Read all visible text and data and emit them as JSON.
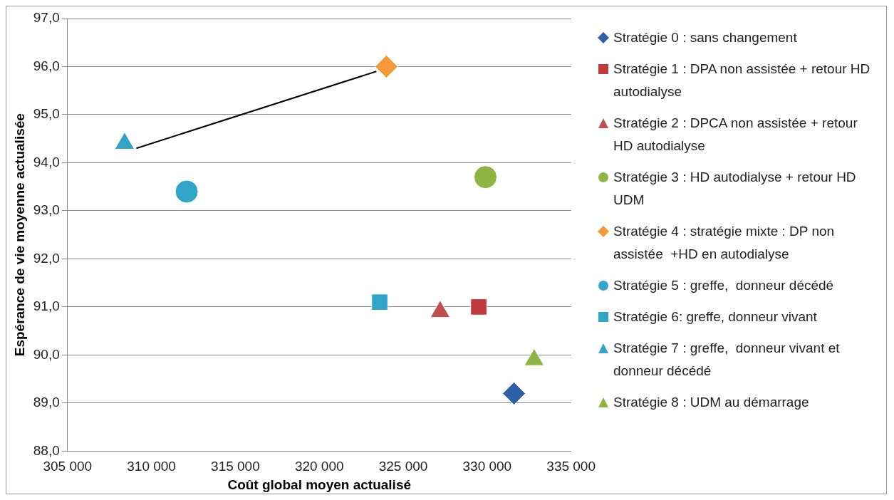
{
  "chart_data": {
    "type": "scatter",
    "xlabel": "Coût global moyen actualisé",
    "ylabel": "Espérance de vie moyenne actualisée",
    "xlim": [
      305000,
      335000
    ],
    "xticks": [
      {
        "value": 305000,
        "label": "305 000"
      },
      {
        "value": 310000,
        "label": "310 000"
      },
      {
        "value": 315000,
        "label": "315 000"
      },
      {
        "value": 320000,
        "label": "320 000"
      },
      {
        "value": 325000,
        "label": "325 000"
      },
      {
        "value": 330000,
        "label": "330 000"
      },
      {
        "value": 335000,
        "label": "335 000"
      }
    ],
    "ylim": [
      88,
      97
    ],
    "yticks": [
      {
        "value": 88,
        "label": "88,0"
      },
      {
        "value": 89,
        "label": "89,0"
      },
      {
        "value": 90,
        "label": "90,0"
      },
      {
        "value": 91,
        "label": "91,0"
      },
      {
        "value": 92,
        "label": "92,0"
      },
      {
        "value": 93,
        "label": "93,0"
      },
      {
        "value": 94,
        "label": "94,0"
      },
      {
        "value": 95,
        "label": "95,0"
      },
      {
        "value": 96,
        "label": "96,0"
      },
      {
        "value": 97,
        "label": "97,0"
      }
    ],
    "grid": "y",
    "legend": "right",
    "series": [
      {
        "type": "line",
        "color": "#000000",
        "marker": "none",
        "x": [
          309100,
          323400
        ],
        "values": [
          94.3,
          95.9
        ]
      },
      {
        "name": "Stratégie 0 : sans changement",
        "color": "#2f5fa8",
        "marker": "diamond",
        "x": [
          331600
        ],
        "values": [
          89.2
        ]
      },
      {
        "name": "Stratégie 1 : DPA non assistée + retour HD autodialyse",
        "color": "#c0393b",
        "marker": "square",
        "x": [
          329500
        ],
        "values": [
          91.0
        ]
      },
      {
        "name": "Stratégie 2 : DPCA non assistée + retour HD autodialyse",
        "color": "#c0504d",
        "marker": "triangle",
        "x": [
          327200
        ],
        "values": [
          90.9
        ]
      },
      {
        "name": "Stratégie 3 : HD autodialyse + retour HD UDM",
        "color": "#8db543",
        "marker": "circle",
        "x": [
          329900
        ],
        "values": [
          93.7
        ]
      },
      {
        "name": "Stratégie 4 : stratégie mixte : DP non assistée  +HD en autodialyse",
        "color": "#f39a3a",
        "marker": "diamond",
        "x": [
          324000
        ],
        "values": [
          96.0
        ]
      },
      {
        "name": "Stratégie 5 : greffe,  donneur décédé",
        "color": "#31a5c8",
        "marker": "circle",
        "x": [
          312100
        ],
        "values": [
          93.4
        ]
      },
      {
        "name": "Stratégie 6: greffe, donneur vivant",
        "color": "#31a5c8",
        "marker": "square",
        "x": [
          323600
        ],
        "values": [
          91.1
        ]
      },
      {
        "name": "Stratégie 7 : greffe,  donneur vivant et donneur décédé",
        "color": "#31a5c8",
        "marker": "triangle",
        "x": [
          308400
        ],
        "values": [
          94.4
        ]
      },
      {
        "name": "Stratégie 8 : UDM au démarrage",
        "color": "#8db543",
        "marker": "triangle",
        "x": [
          332800
        ],
        "values": [
          89.9
        ]
      }
    ]
  }
}
